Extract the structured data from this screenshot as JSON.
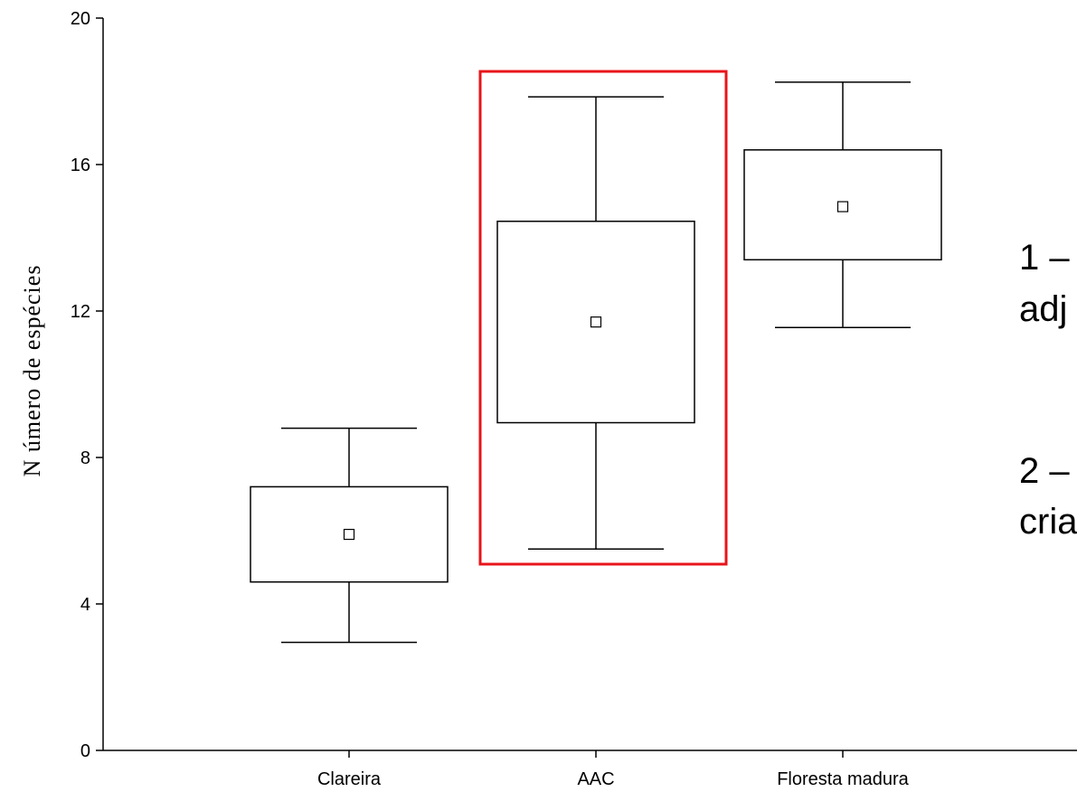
{
  "chart_data": {
    "type": "box",
    "ylabel": "N úmero de espécies",
    "xlabel": "",
    "ylim": [
      0,
      20
    ],
    "yticks": [
      0,
      4,
      8,
      12,
      16,
      20
    ],
    "categories": [
      "Clareira",
      "AAC",
      "Floresta madura"
    ],
    "boxes": [
      {
        "category": "Clareira",
        "whisker_low": 2.95,
        "q1": 4.6,
        "mean": 5.9,
        "q3": 7.2,
        "whisker_high": 8.8
      },
      {
        "category": "AAC",
        "whisker_low": 5.5,
        "q1": 8.95,
        "mean": 11.7,
        "q3": 14.45,
        "whisker_high": 17.85
      },
      {
        "category": "Floresta madura",
        "whisker_low": 11.55,
        "q1": 13.4,
        "mean": 14.85,
        "q3": 16.4,
        "whisker_high": 18.25
      }
    ],
    "highlight": {
      "category": "AAC",
      "color": "#e8141a"
    }
  },
  "annotations": [
    "1 –",
    "adj",
    "2 –",
    "cria"
  ],
  "colors": {
    "highlight": "#e8141a",
    "ink": "#000000",
    "background": "#ffffff"
  }
}
